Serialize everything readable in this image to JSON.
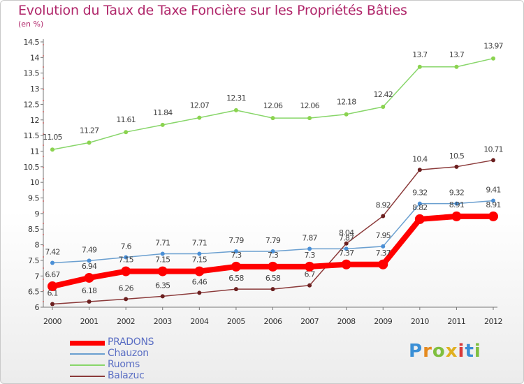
{
  "page": {
    "title": "Evolution du Taux de Taxe Foncière sur les Propriétés Bâties",
    "subtitle": "(en %)"
  },
  "logo": {
    "text": "Proxiti"
  },
  "colors": {
    "PRADONS": "#ff0000",
    "Chauzon": "#6a9fd0",
    "Ruoms": "#88d66a",
    "Balazuc": "#8b3a3a",
    "title": "#b0266a"
  },
  "chart_data": {
    "type": "line",
    "title": "Evolution du Taux de Taxe Foncière sur les Propriétés Bâties",
    "ylabel": "(en %)",
    "xlabel": "",
    "x": [
      "2000",
      "2001",
      "2002",
      "2003",
      "2004",
      "2005",
      "2006",
      "2007",
      "2008",
      "2009",
      "2010",
      "2011",
      "2012"
    ],
    "ylim": [
      6,
      14.5
    ],
    "yticks": [
      "6",
      "6.5",
      "7",
      "7.5",
      "8",
      "8.5",
      "9",
      "9.5",
      "10",
      "10.5",
      "11",
      "11.5",
      "12",
      "12.5",
      "13",
      "13.5",
      "14",
      "14.5"
    ],
    "grid": false,
    "legend": "bottom-left",
    "series": [
      {
        "name": "PRADONS",
        "values": [
          6.67,
          6.94,
          7.15,
          7.15,
          7.15,
          7.3,
          7.3,
          7.3,
          7.37,
          7.37,
          8.82,
          8.91,
          8.91
        ]
      },
      {
        "name": "Chauzon",
        "values": [
          7.42,
          7.49,
          7.6,
          7.71,
          7.71,
          7.79,
          7.79,
          7.87,
          7.87,
          7.95,
          9.32,
          9.32,
          9.41
        ]
      },
      {
        "name": "Ruoms",
        "values": [
          11.05,
          11.27,
          11.61,
          11.84,
          12.07,
          12.31,
          12.06,
          12.06,
          12.18,
          12.42,
          13.7,
          13.7,
          13.97
        ]
      },
      {
        "name": "Balazuc",
        "values": [
          6.1,
          6.18,
          6.26,
          6.35,
          6.46,
          6.58,
          6.58,
          6.7,
          8.04,
          8.92,
          10.4,
          10.5,
          10.71
        ]
      }
    ]
  }
}
